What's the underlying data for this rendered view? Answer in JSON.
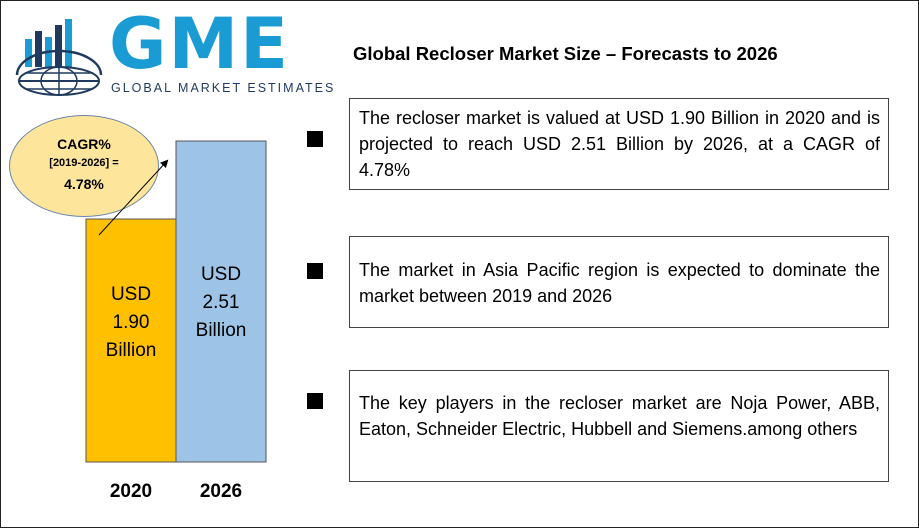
{
  "logo": {
    "text": "GME",
    "subtitle": "GLOBAL MARKET ESTIMATES",
    "colors": {
      "brand_blue": "#1a9bd4",
      "globe_navy": "#1f3a5e"
    }
  },
  "title": "Global Recloser Market Size – Forecasts to 2026",
  "cagr": {
    "line1": "CAGR%",
    "line2": "[2019-2026] =",
    "line3": "4.78%"
  },
  "chart_data": {
    "type": "bar",
    "categories": [
      "2020",
      "2026"
    ],
    "values": [
      1.9,
      2.51
    ],
    "ylim": [
      0,
      2.51
    ],
    "grid": false,
    "legend": "none",
    "colors": [
      "#ffc000",
      "#9dc3e6"
    ],
    "bar_labels": [
      {
        "line1": "USD",
        "line2": "1.90",
        "line3": "Billion"
      },
      {
        "line1": "USD",
        "line2": "2.51",
        "line3": "Billion"
      }
    ]
  },
  "points": [
    "The recloser market is valued at USD 1.90 Billion in 2020 and is projected to reach USD 2.51 Billion by 2026, at a CAGR of 4.78%",
    "The market in Asia Pacific region is expected to dominate the market between 2019 and 2026",
    "The key players in the recloser market are Noja Power, ABB, Eaton, Schneider Electric, Hubbell and Siemens.among others"
  ]
}
